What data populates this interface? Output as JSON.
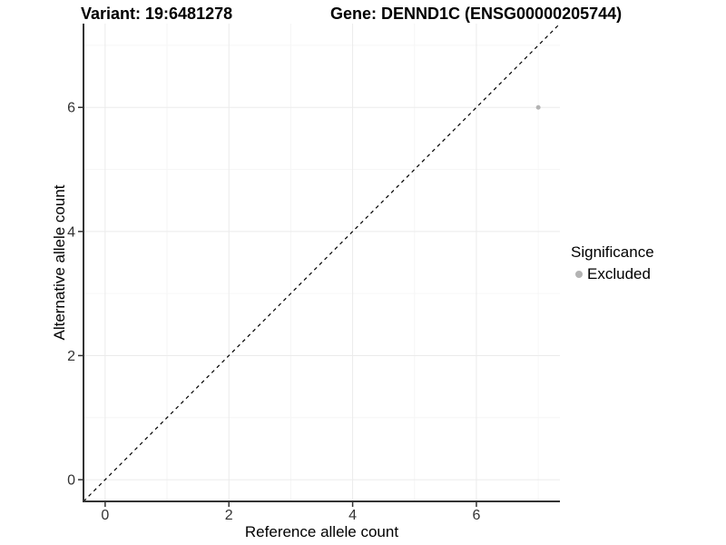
{
  "titles": {
    "variant": "Variant: 19:6481278",
    "gene": "Gene: DENND1C (ENSG00000205744)"
  },
  "chart_data": {
    "type": "scatter",
    "xlabel": "Reference allele count",
    "ylabel": "Alternative allele count",
    "xlim": [
      -0.35,
      7.35
    ],
    "ylim": [
      -0.35,
      7.35
    ],
    "x_ticks": [
      0,
      2,
      4,
      6
    ],
    "y_ticks": [
      0,
      2,
      4,
      6
    ],
    "x_minor_breaks": [
      1,
      3,
      5,
      7
    ],
    "y_minor_breaks": [
      1,
      3,
      5,
      7
    ],
    "grid": "major and minor gridlines on white background",
    "identity_line": {
      "type": "abline",
      "slope": 1,
      "intercept": 0,
      "style": "dashed",
      "color": "#000000"
    },
    "series": [
      {
        "name": "Excluded",
        "color": "#b3b3b3",
        "point_radius": 2.5,
        "points": [
          {
            "x": 7,
            "y": 6
          }
        ]
      }
    ],
    "legend": {
      "title": "Significance",
      "position": "right",
      "entries": [
        {
          "label": "Excluded",
          "color": "#b3b3b3"
        }
      ]
    },
    "colors": {
      "grid_major": "#ebebeb",
      "grid_minor": "#f6f6f6",
      "axis_line": "#333333",
      "tick_mark": "#333333",
      "tick_label": "#333333",
      "background": "#ffffff"
    }
  }
}
